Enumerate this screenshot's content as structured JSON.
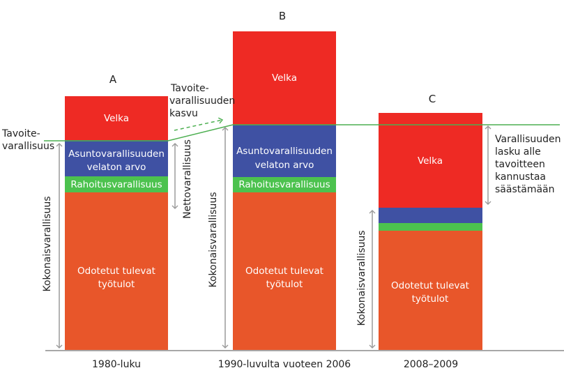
{
  "colors": {
    "debt": "#ee2a24",
    "housing": "#3f51a3",
    "financial": "#4cc24e",
    "labour": "#e8562a",
    "target_line": "#4caf50",
    "arrow": "#9a9a9a"
  },
  "segments": {
    "debt": "Velka",
    "housing_line1": "Asuntovarallisuuden",
    "housing_line2": "velaton arvo",
    "financial": "Rahoitusvarallisuus",
    "labour_line1": "Odotetut tulevat",
    "labour_line2": "työtulot"
  },
  "bars": [
    {
      "letter": "A",
      "period": "1980-luku"
    },
    {
      "letter": "B",
      "period": "1990-luvulta vuoteen 2006"
    },
    {
      "letter": "C",
      "period": "2008–2009"
    }
  ],
  "annotations": {
    "target_line1": "Tavoite-",
    "target_line2": "varallisuus",
    "growth_line1": "Tavoite-",
    "growth_line2": "varallisuuden",
    "growth_line3": "kasvu",
    "total_wealth": "Kokonaisvarallisuus",
    "net_wealth": "Nettovarallisuus",
    "drop_line1": "Varallisuuden",
    "drop_line2": "lasku alle",
    "drop_line3": "tavoitteen",
    "drop_line4": "kannustaa",
    "drop_line5": "säästämään"
  }
}
